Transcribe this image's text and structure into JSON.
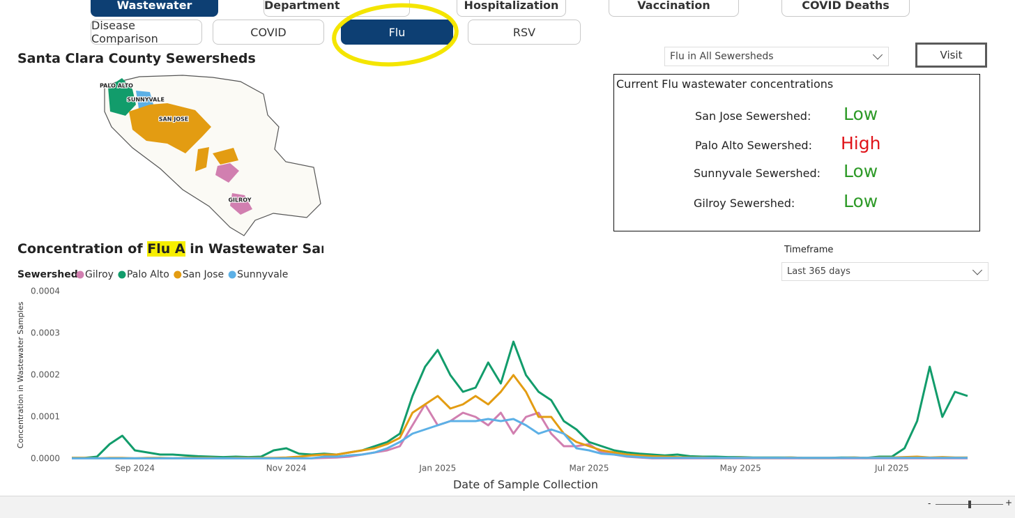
{
  "nav": {
    "top_tabs": [
      "Wastewater",
      "Emergency Department",
      "Hospitalization",
      "Vaccination",
      "COVID Deaths"
    ],
    "disease_tabs": [
      "Disease Comparison",
      "COVID",
      "Flu",
      "RSV"
    ]
  },
  "map": {
    "title": "Santa Clara County Sewersheds",
    "labels": [
      "PALO ALTO",
      "SUNNYVALE",
      "SAN JOSE",
      "GILROY"
    ]
  },
  "selector": "Flu in All Sewersheds",
  "visit": "Visit",
  "status_box": {
    "title": "Current Flu wastewater concentrations",
    "rows": [
      {
        "name": "San Jose Sewershed:",
        "level": "Low",
        "color": "#2e9a28"
      },
      {
        "name": "Palo Alto Sewershed:",
        "level": "High",
        "color": "#e0141a"
      },
      {
        "name": "Sunnyvale Sewershed:",
        "level": "Low",
        "color": "#2e9a28"
      },
      {
        "name": "Gilroy Sewershed:",
        "level": "Low",
        "color": "#2e9a28"
      }
    ]
  },
  "timeframe": {
    "label": "Timeframe",
    "value": "Last 365 days"
  },
  "zoom": {
    "minus": "-",
    "plus": "+"
  },
  "chart_data": {
    "type": "line",
    "title": {
      "before": "Concentration of",
      "highlight": "Flu A",
      "after": "in Wastewater Sample"
    },
    "legend_title": "Sewershed",
    "x_label": "Date of Sample Collection",
    "y_label": "Concentration in Wastewater Samples",
    "categories": [
      null,
      null,
      null,
      null,
      null,
      "Sep 2024",
      null,
      null,
      null,
      null,
      null,
      null,
      null,
      null,
      null,
      null,
      null,
      "Nov 2024",
      null,
      null,
      null,
      null,
      null,
      null,
      null,
      null,
      null,
      null,
      null,
      "Jan 2025",
      null,
      null,
      null,
      null,
      null,
      null,
      null,
      null,
      null,
      null,
      null,
      "Mar 2025",
      null,
      null,
      null,
      null,
      null,
      null,
      null,
      null,
      null,
      null,
      null,
      "May 2025",
      null,
      null,
      null,
      null,
      null,
      null,
      null,
      null,
      null,
      null,
      null,
      "Jul 2025",
      null,
      null,
      null,
      null,
      null,
      null
    ],
    "ylim": [
      0,
      0.0004
    ],
    "yticks": [
      {
        "value": 0,
        "label": "0.0000"
      },
      {
        "value": 0.0001,
        "label": "0.0001"
      },
      {
        "value": 0.0002,
        "label": "0.0002"
      },
      {
        "value": 0.0003,
        "label": "0.0003"
      },
      {
        "value": 0.0004,
        "label": "0.0004"
      }
    ],
    "grid": false,
    "series": [
      {
        "name": "Gilroy",
        "color": "#d17fb0",
        "values": [
          1e-06,
          1e-06,
          1e-06,
          1e-06,
          1e-06,
          1e-06,
          1e-06,
          1e-06,
          1e-06,
          1e-06,
          1e-06,
          1e-06,
          1e-06,
          1e-06,
          1e-06,
          1e-06,
          1e-06,
          1e-06,
          1e-06,
          1e-06,
          2e-06,
          3e-06,
          5e-06,
          1e-05,
          1.5e-05,
          2e-05,
          3e-05,
          8e-05,
          0.00013,
          8e-05,
          9e-05,
          0.00011,
          0.0001,
          8e-05,
          0.00011,
          6e-05,
          0.0001,
          0.00011,
          6e-05,
          3e-05,
          3e-05,
          3.5e-05,
          1.5e-05,
          1e-05,
          5e-06,
          3e-06,
          1e-06,
          1e-06,
          1e-06,
          1e-06,
          1e-06,
          1e-06,
          1e-06,
          1e-06,
          1e-06,
          1e-06,
          1e-06,
          1e-06,
          1e-06,
          1e-06,
          1e-06,
          1e-06,
          1e-06,
          1e-06,
          1e-06,
          1e-06,
          1e-06,
          1e-06,
          1e-06,
          1e-06,
          1e-06,
          1e-06
        ]
      },
      {
        "name": "Palo Alto",
        "color": "#129c6b",
        "values": [
          2e-06,
          2e-06,
          5e-06,
          3.5e-05,
          5.5e-05,
          2e-05,
          1.5e-05,
          1e-05,
          1e-05,
          8e-06,
          6e-06,
          5e-06,
          4e-06,
          5e-06,
          4e-06,
          5e-06,
          2e-05,
          2.5e-05,
          1.2e-05,
          1e-05,
          1.2e-05,
          1e-05,
          1.5e-05,
          2e-05,
          3e-05,
          4e-05,
          6e-05,
          0.00015,
          0.00022,
          0.00026,
          0.0002,
          0.00016,
          0.00017,
          0.00023,
          0.00018,
          0.00028,
          0.0002,
          0.00016,
          0.00014,
          9e-05,
          7e-05,
          4e-05,
          3e-05,
          2e-05,
          1.5e-05,
          1.2e-05,
          1e-05,
          8e-06,
          1e-05,
          6e-06,
          5e-06,
          5e-06,
          4e-06,
          4e-06,
          3e-06,
          3e-06,
          3e-06,
          3e-06,
          2e-06,
          2e-06,
          2e-06,
          3e-06,
          3e-06,
          2e-06,
          5e-06,
          5e-06,
          2.5e-05,
          9e-05,
          0.00022,
          0.0001,
          0.00016,
          0.00015
        ]
      },
      {
        "name": "San Jose",
        "color": "#e39c12",
        "values": [
          2e-06,
          2e-06,
          1e-06,
          2e-06,
          2e-06,
          1e-06,
          2e-06,
          2e-06,
          1e-06,
          2e-06,
          2e-06,
          2e-06,
          1e-06,
          2e-06,
          2e-06,
          2e-06,
          2e-06,
          3e-06,
          5e-06,
          8e-06,
          1e-05,
          1e-05,
          1.5e-05,
          2e-05,
          2.5e-05,
          3.5e-05,
          5e-05,
          0.00011,
          0.00013,
          0.00015,
          0.00012,
          0.00013,
          0.00015,
          0.00013,
          0.00016,
          0.0002,
          0.00016,
          0.0001,
          0.0001,
          6e-05,
          4e-05,
          3e-05,
          2e-05,
          1.5e-05,
          1e-05,
          8e-06,
          6e-06,
          5e-06,
          4e-06,
          3e-06,
          3e-06,
          2e-06,
          2e-06,
          3e-06,
          2e-06,
          2e-06,
          2e-06,
          3e-06,
          2e-06,
          2e-06,
          2e-06,
          2e-06,
          3e-06,
          2e-06,
          3e-06,
          3e-06,
          4e-06,
          5e-06,
          3e-06,
          4e-06,
          3e-06,
          3e-06
        ]
      },
      {
        "name": "Sunnyvale",
        "color": "#5cb0e6",
        "values": [
          1e-06,
          1e-06,
          1e-06,
          1e-06,
          1e-06,
          1e-06,
          1e-06,
          1e-06,
          1e-06,
          1e-06,
          1e-06,
          1e-06,
          1e-06,
          1e-06,
          1e-06,
          1e-06,
          1e-06,
          1e-06,
          1e-06,
          1e-06,
          5e-06,
          5e-06,
          8e-06,
          1e-05,
          1.5e-05,
          2.5e-05,
          4e-05,
          6e-05,
          7e-05,
          8e-05,
          9e-05,
          9e-05,
          9e-05,
          9.5e-05,
          9e-05,
          9.5e-05,
          8e-05,
          6e-05,
          7e-05,
          6e-05,
          2.5e-05,
          2e-05,
          1.2e-05,
          1e-05,
          6e-06,
          4e-06,
          2e-06,
          2e-06,
          2e-06,
          2e-06,
          2e-06,
          2e-06,
          2e-06,
          2e-06,
          2e-06,
          2e-06,
          2e-06,
          2e-06,
          2e-06,
          2e-06,
          2e-06,
          2e-06,
          2e-06,
          2e-06,
          2e-06,
          2e-06,
          2e-06,
          2e-06,
          2e-06,
          2e-06,
          2e-06,
          2e-06
        ]
      }
    ]
  }
}
